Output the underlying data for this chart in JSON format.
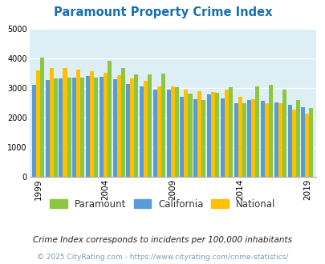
{
  "title": "Paramount Property Crime Index",
  "years": [
    1999,
    2000,
    2001,
    2002,
    2003,
    2004,
    2005,
    2006,
    2007,
    2008,
    2009,
    2010,
    2011,
    2012,
    2013,
    2014,
    2015,
    2016,
    2017,
    2018,
    2019
  ],
  "paramount": [
    4030,
    3320,
    3370,
    3370,
    3370,
    3930,
    3680,
    3460,
    3470,
    3500,
    3040,
    2820,
    2590,
    2840,
    3030,
    2490,
    3070,
    3110,
    2950,
    2600,
    2340
  ],
  "california": [
    3110,
    3290,
    3340,
    3360,
    3420,
    3390,
    3300,
    3150,
    3060,
    2960,
    2940,
    2720,
    2620,
    2790,
    2660,
    2490,
    2610,
    2560,
    2530,
    2430,
    2350
  ],
  "national": [
    3600,
    3680,
    3680,
    3630,
    3570,
    3510,
    3450,
    3340,
    3260,
    3070,
    3060,
    2950,
    2890,
    2880,
    2960,
    2720,
    2620,
    2500,
    2480,
    2270,
    2140
  ],
  "paramount_color": "#8dc63f",
  "california_color": "#5b9bd5",
  "national_color": "#ffc000",
  "bg_color": "#ddeef5",
  "title_color": "#1a6faf",
  "ylim": [
    0,
    5000
  ],
  "yticks": [
    0,
    1000,
    2000,
    3000,
    4000,
    5000
  ],
  "xtick_years": [
    1999,
    2004,
    2009,
    2014,
    2019
  ],
  "legend_labels": [
    "Paramount",
    "California",
    "National"
  ],
  "footnote1": "Crime Index corresponds to incidents per 100,000 inhabitants",
  "footnote2": "© 2025 CityRating.com - https://www.cityrating.com/crime-statistics/",
  "footnote1_color": "#222222",
  "footnote2_color": "#7a9cbb"
}
